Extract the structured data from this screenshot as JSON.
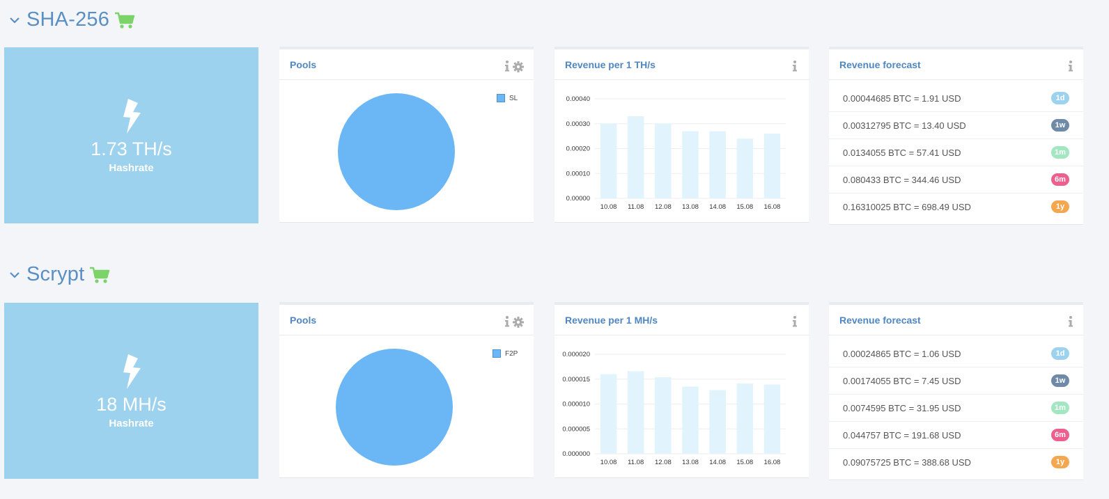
{
  "sections": [
    {
      "title": "SHA-256",
      "hashrate": {
        "value": "1.73 TH/s",
        "label": "Hashrate"
      },
      "pools": {
        "title": "Pools",
        "legend": "SL",
        "chart_color": "#6bb6f5"
      },
      "revenue": {
        "title": "Revenue per 1 TH/s",
        "chart_data": {
          "type": "bar",
          "categories": [
            "10.08",
            "11.08",
            "12.08",
            "13.08",
            "14.08",
            "15.08",
            "16.08"
          ],
          "values": [
            0.0003,
            0.00033,
            0.0003,
            0.00027,
            0.00027,
            0.00024,
            0.00026
          ],
          "ylim": [
            0,
            0.0004
          ],
          "yticks": [
            "0.00000",
            "0.00010",
            "0.00020",
            "0.00030",
            "0.00040"
          ]
        }
      },
      "forecast": {
        "title": "Revenue forecast",
        "rows": [
          {
            "text": "0.00044685 BTC = 1.91 USD",
            "badge": "1d",
            "color": "#9dd2ef"
          },
          {
            "text": "0.00312795 BTC = 13.40 USD",
            "badge": "1w",
            "color": "#6e8aa7"
          },
          {
            "text": "0.0134055 BTC = 57.41 USD",
            "badge": "1m",
            "color": "#a3e6c2"
          },
          {
            "text": "0.080433 BTC = 344.46 USD",
            "badge": "6m",
            "color": "#ec5f8f"
          },
          {
            "text": "0.16310025 BTC = 698.49 USD",
            "badge": "1y",
            "color": "#f4a74f"
          }
        ]
      }
    },
    {
      "title": "Scrypt",
      "hashrate": {
        "value": "18 MH/s",
        "label": "Hashrate"
      },
      "pools": {
        "title": "Pools",
        "legend": "F2P",
        "chart_color": "#6bb6f5"
      },
      "revenue": {
        "title": "Revenue per 1 MH/s",
        "chart_data": {
          "type": "bar",
          "categories": [
            "10.08",
            "11.08",
            "12.08",
            "13.08",
            "14.08",
            "15.08",
            "16.08"
          ],
          "values": [
            1.6e-05,
            1.66e-05,
            1.54e-05,
            1.35e-05,
            1.28e-05,
            1.41e-05,
            1.39e-05
          ],
          "ylim": [
            0,
            2e-05
          ],
          "yticks": [
            "0.000000",
            "0.000005",
            "0.000010",
            "0.000015",
            "0.000020"
          ]
        }
      },
      "forecast": {
        "title": "Revenue forecast",
        "rows": [
          {
            "text": "0.00024865 BTC = 1.06 USD",
            "badge": "1d",
            "color": "#9dd2ef"
          },
          {
            "text": "0.00174055 BTC = 7.45 USD",
            "badge": "1w",
            "color": "#6e8aa7"
          },
          {
            "text": "0.0074595 BTC = 31.95 USD",
            "badge": "1m",
            "color": "#a3e6c2"
          },
          {
            "text": "0.044757 BTC = 191.68 USD",
            "badge": "6m",
            "color": "#ec5f8f"
          },
          {
            "text": "0.09075725 BTC = 388.68 USD",
            "badge": "1y",
            "color": "#f4a74f"
          }
        ]
      }
    }
  ]
}
